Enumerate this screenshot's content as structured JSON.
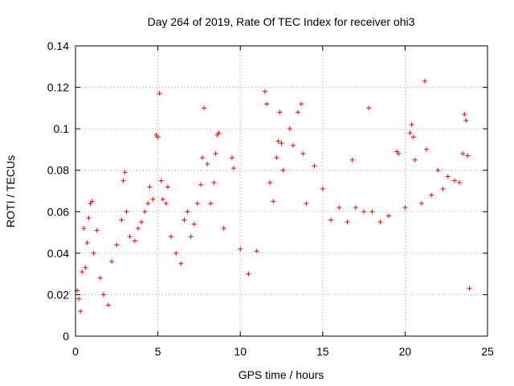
{
  "chart_data": {
    "type": "scatter",
    "title": "Day 264 of 2019, Rate Of TEC Index for receiver ohi3",
    "xlabel": "GPS time / hours",
    "ylabel": "ROTI / TECUs",
    "xlim": [
      0,
      25
    ],
    "ylim": [
      0,
      0.14
    ],
    "xticks": [
      "0",
      "5",
      "10",
      "15",
      "20",
      "25"
    ],
    "yticks": [
      "0",
      "0.02",
      "0.04",
      "0.06",
      "0.08",
      "0.1",
      "0.12",
      "0.14"
    ],
    "grid": true,
    "marker": "+",
    "colors": {
      "series": "#ff0000",
      "grid": "#a0a0a0"
    },
    "series": [
      {
        "points": [
          [
            0.1,
            0.022
          ],
          [
            0.2,
            0.018
          ],
          [
            0.3,
            0.012
          ],
          [
            0.4,
            0.031
          ],
          [
            0.5,
            0.052
          ],
          [
            0.6,
            0.033
          ],
          [
            0.7,
            0.045
          ],
          [
            0.8,
            0.057
          ],
          [
            0.9,
            0.064
          ],
          [
            1.0,
            0.065
          ],
          [
            1.1,
            0.04
          ],
          [
            1.3,
            0.051
          ],
          [
            1.5,
            0.028
          ],
          [
            1.7,
            0.02
          ],
          [
            2.0,
            0.015
          ],
          [
            2.2,
            0.036
          ],
          [
            2.5,
            0.044
          ],
          [
            2.8,
            0.056
          ],
          [
            2.9,
            0.075
          ],
          [
            3.0,
            0.079
          ],
          [
            3.1,
            0.06
          ],
          [
            3.3,
            0.048
          ],
          [
            3.6,
            0.046
          ],
          [
            3.8,
            0.052
          ],
          [
            4.0,
            0.055
          ],
          [
            4.2,
            0.06
          ],
          [
            4.4,
            0.064
          ],
          [
            4.5,
            0.072
          ],
          [
            4.7,
            0.066
          ],
          [
            4.9,
            0.097
          ],
          [
            5.0,
            0.096
          ],
          [
            5.1,
            0.117
          ],
          [
            5.2,
            0.075
          ],
          [
            5.3,
            0.066
          ],
          [
            5.5,
            0.064
          ],
          [
            5.6,
            0.072
          ],
          [
            5.8,
            0.048
          ],
          [
            6.1,
            0.04
          ],
          [
            6.4,
            0.035
          ],
          [
            6.6,
            0.056
          ],
          [
            6.8,
            0.06
          ],
          [
            7.0,
            0.048
          ],
          [
            7.2,
            0.054
          ],
          [
            7.4,
            0.064
          ],
          [
            7.6,
            0.073
          ],
          [
            7.7,
            0.086
          ],
          [
            7.8,
            0.11
          ],
          [
            8.0,
            0.083
          ],
          [
            8.2,
            0.064
          ],
          [
            8.4,
            0.074
          ],
          [
            8.5,
            0.088
          ],
          [
            8.6,
            0.097
          ],
          [
            8.7,
            0.098
          ],
          [
            9.0,
            0.052
          ],
          [
            9.5,
            0.086
          ],
          [
            9.6,
            0.081
          ],
          [
            10.0,
            0.042
          ],
          [
            10.5,
            0.03
          ],
          [
            11.0,
            0.041
          ],
          [
            11.5,
            0.118
          ],
          [
            11.6,
            0.112
          ],
          [
            11.8,
            0.074
          ],
          [
            12.0,
            0.065
          ],
          [
            12.2,
            0.086
          ],
          [
            12.3,
            0.094
          ],
          [
            12.4,
            0.108
          ],
          [
            12.5,
            0.093
          ],
          [
            12.6,
            0.08
          ],
          [
            13.0,
            0.1
          ],
          [
            13.2,
            0.092
          ],
          [
            13.5,
            0.108
          ],
          [
            13.7,
            0.112
          ],
          [
            13.8,
            0.088
          ],
          [
            14.0,
            0.064
          ],
          [
            14.5,
            0.082
          ],
          [
            15.0,
            0.071
          ],
          [
            15.5,
            0.056
          ],
          [
            16.0,
            0.062
          ],
          [
            16.5,
            0.055
          ],
          [
            16.8,
            0.085
          ],
          [
            17.0,
            0.062
          ],
          [
            17.5,
            0.06
          ],
          [
            17.8,
            0.11
          ],
          [
            18.0,
            0.06
          ],
          [
            18.5,
            0.055
          ],
          [
            19.0,
            0.058
          ],
          [
            19.5,
            0.089
          ],
          [
            19.6,
            0.088
          ],
          [
            20.0,
            0.062
          ],
          [
            20.3,
            0.098
          ],
          [
            20.4,
            0.102
          ],
          [
            20.5,
            0.096
          ],
          [
            20.6,
            0.085
          ],
          [
            21.0,
            0.064
          ],
          [
            21.2,
            0.123
          ],
          [
            21.3,
            0.09
          ],
          [
            21.6,
            0.068
          ],
          [
            22.0,
            0.08
          ],
          [
            22.3,
            0.071
          ],
          [
            22.6,
            0.077
          ],
          [
            23.0,
            0.075
          ],
          [
            23.3,
            0.074
          ],
          [
            23.5,
            0.088
          ],
          [
            23.6,
            0.107
          ],
          [
            23.7,
            0.104
          ],
          [
            23.8,
            0.087
          ],
          [
            23.9,
            0.023
          ]
        ]
      }
    ]
  }
}
